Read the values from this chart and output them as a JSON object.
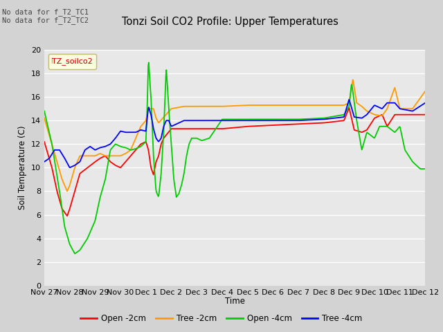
{
  "title": "Tonzi Soil CO2 Profile: Upper Temperatures",
  "ylabel": "Soil Temperature (C)",
  "xlabel": "Time",
  "no_data_text": [
    "No data for f_T2_TC1",
    "No data for f_T2_TC2"
  ],
  "legend_label": "TZ_soilco2",
  "ylim": [
    0,
    20
  ],
  "yticks": [
    0,
    2,
    4,
    6,
    8,
    10,
    12,
    14,
    16,
    18,
    20
  ],
  "xtick_labels": [
    "Nov 27",
    "Nov 28",
    "Nov 29",
    "Nov 30",
    "Dec 1",
    "Dec 2",
    "Dec 3",
    "Dec 4",
    "Dec 5",
    "Dec 6",
    "Dec 7",
    "Dec 8",
    "Dec 9",
    "Dec 10",
    "Dec 11",
    "Dec 12"
  ],
  "line_colors": {
    "open_2cm": "#ff0000",
    "tree_2cm": "#ff9900",
    "open_4cm": "#00cc00",
    "tree_4cm": "#0000ff"
  },
  "legend_entries": [
    "Open -2cm",
    "Tree -2cm",
    "Open -4cm",
    "Tree -4cm"
  ],
  "fig_bg": "#d3d3d3",
  "ax_bg": "#e8e8e8",
  "grid_color": "#ffffff"
}
